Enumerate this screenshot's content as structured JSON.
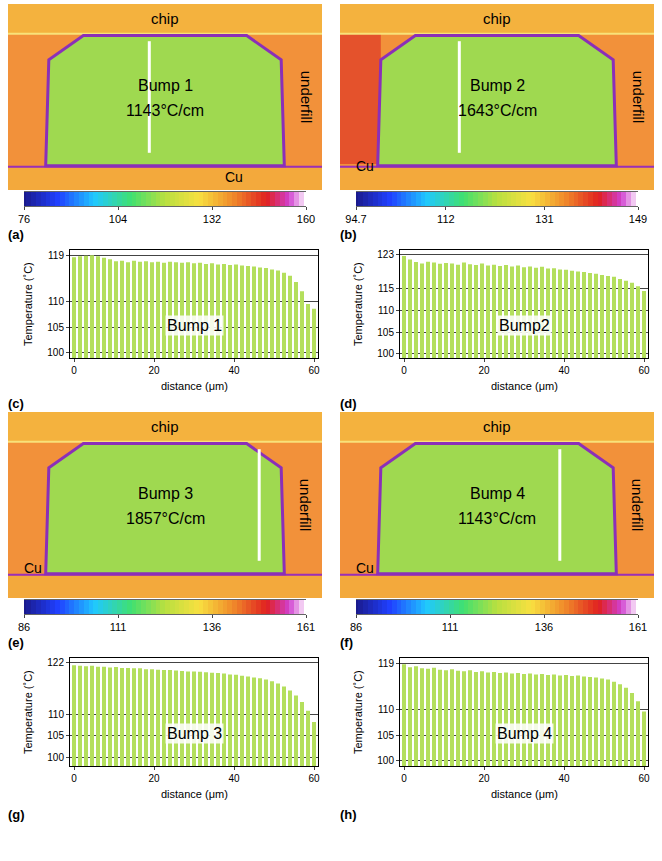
{
  "thermal_images": [
    {
      "panel": "(a)",
      "texts": {
        "chip": "chip",
        "bump": "Bump 1",
        "gradient": "1143°C/cm",
        "underfill": "underfill",
        "cu": "Cu"
      },
      "colorbar": {
        "range": [
          76,
          160
        ],
        "ticks": [
          76,
          104,
          132,
          160
        ]
      }
    },
    {
      "panel": "(b)",
      "texts": {
        "chip": "chip",
        "bump": "Bump 2",
        "gradient": "1643°C/cm",
        "underfill": "underfill",
        "cu": "Cu"
      },
      "colorbar": {
        "range": [
          94.7,
          149
        ],
        "ticks": [
          94.7,
          112,
          131,
          149
        ]
      }
    },
    {
      "panel": "(e)",
      "texts": {
        "chip": "chip",
        "bump": "Bump 3",
        "gradient": "1857°C/cm",
        "underfill": "underfill",
        "cu": "Cu"
      },
      "colorbar": {
        "range": [
          86,
          161
        ],
        "ticks": [
          86,
          111,
          136,
          161
        ]
      }
    },
    {
      "panel": "(f)",
      "texts": {
        "chip": "chip",
        "bump": "Bump 4",
        "gradient": "1143°C/cm",
        "underfill": "underfill",
        "cu": "Cu"
      },
      "colorbar": {
        "range": [
          86,
          161
        ],
        "ticks": [
          86,
          111,
          136,
          161
        ]
      }
    }
  ],
  "chart_data": [
    {
      "type": "bar",
      "panel": "(c)",
      "title": "Bump 1",
      "xlabel": "distance (μm)",
      "ylabel": "Temperature (˚C)",
      "color": "#b4df5c",
      "grid": true,
      "x": [
        0,
        1.5,
        3,
        4.5,
        6,
        7.5,
        9,
        10.5,
        12,
        13.5,
        15,
        16.5,
        18,
        19.5,
        21,
        22.5,
        24,
        25.5,
        27,
        28.5,
        30,
        31.5,
        33,
        34.5,
        36,
        37.5,
        39,
        40.5,
        42,
        43.5,
        45,
        46.5,
        48,
        49.5,
        51,
        52.5,
        54,
        55.5,
        57,
        58.5,
        60
      ],
      "values": [
        118.6,
        118.8,
        118.9,
        119,
        118.8,
        118.5,
        118.2,
        117.8,
        117.9,
        117.6,
        117.9,
        117.7,
        117.8,
        117.6,
        117.7,
        117.5,
        117.7,
        117.6,
        117.5,
        117.6,
        117.4,
        117.5,
        117.3,
        117.4,
        117.2,
        117.3,
        117.1,
        117.2,
        117,
        116.9,
        116.8,
        116.6,
        116.5,
        116.2,
        116,
        115.6,
        115,
        113.8,
        112,
        109.5,
        108.6
      ],
      "xlim": [
        -1,
        61
      ],
      "xticks": [
        0,
        20,
        40,
        60
      ],
      "ylim": [
        99,
        120
      ],
      "yticks": [
        100,
        105,
        110,
        119
      ]
    },
    {
      "type": "bar",
      "panel": "(d)",
      "title": "Bump2",
      "xlabel": "distance (μm)",
      "ylabel": "Temperature (˚C)",
      "color": "#b4df5c",
      "grid": true,
      "x": [
        0,
        1.5,
        3,
        4.5,
        6,
        7.5,
        9,
        10.5,
        12,
        13.5,
        15,
        16.5,
        18,
        19.5,
        21,
        22.5,
        24,
        25.5,
        27,
        28.5,
        30,
        31.5,
        33,
        34.5,
        36,
        37.5,
        39,
        40.5,
        42,
        43.5,
        45,
        46.5,
        48,
        49.5,
        51,
        52.5,
        54,
        55.5,
        57,
        58.5,
        60
      ],
      "values": [
        122.6,
        121.8,
        121.2,
        120.9,
        121.3,
        121.1,
        120.8,
        121,
        120.9,
        120.6,
        121.1,
        120.7,
        120.5,
        120.9,
        120.4,
        120.6,
        120.3,
        120.5,
        120.2,
        120.4,
        120,
        120.2,
        119.9,
        120.1,
        119.7,
        119.8,
        119.5,
        119.4,
        119.2,
        119,
        118.9,
        118.7,
        118.5,
        118.2,
        118,
        117.8,
        117.3,
        116.9,
        116.4,
        115.6,
        114.5
      ],
      "xlim": [
        -1,
        61
      ],
      "xticks": [
        0,
        20,
        40,
        60
      ],
      "ylim": [
        99,
        124
      ],
      "yticks": [
        100,
        105,
        110,
        115,
        123
      ]
    },
    {
      "type": "bar",
      "panel": "(g)",
      "title": "Bump 3",
      "xlabel": "distance (μm)",
      "ylabel": "Temperature (˚C)",
      "color": "#b4df5c",
      "grid": true,
      "x": [
        0,
        1.5,
        3,
        4.5,
        6,
        7.5,
        9,
        10.5,
        12,
        13.5,
        15,
        16.5,
        18,
        19.5,
        21,
        22.5,
        24,
        25.5,
        27,
        28.5,
        30,
        31.5,
        33,
        34.5,
        36,
        37.5,
        39,
        40.5,
        42,
        43.5,
        45,
        46.5,
        48,
        49.5,
        51,
        52.5,
        54,
        55.5,
        57,
        58.5,
        60
      ],
      "values": [
        121.3,
        121.2,
        121.1,
        121.2,
        121,
        121,
        120.8,
        120.9,
        120.7,
        120.7,
        120.6,
        120.6,
        120.4,
        120.4,
        120.3,
        120.2,
        120.2,
        120.1,
        120,
        119.9,
        119.9,
        119.8,
        119.7,
        119.6,
        119.5,
        119.4,
        119.2,
        119.1,
        118.9,
        118.7,
        118.5,
        118.3,
        118,
        117.6,
        117.1,
        116.4,
        115.5,
        114.3,
        112.8,
        110.8,
        108.2
      ],
      "xlim": [
        -1,
        61
      ],
      "xticks": [
        0,
        20,
        40,
        60
      ],
      "ylim": [
        98,
        123
      ],
      "yticks": [
        100,
        105,
        110,
        122
      ]
    },
    {
      "type": "bar",
      "panel": "(h)",
      "title": "Bump 4",
      "xlabel": "distance (μm)",
      "ylabel": "Temperature (˚C)",
      "color": "#b4df5c",
      "grid": true,
      "x": [
        0,
        1.5,
        3,
        4.5,
        6,
        7.5,
        9,
        10.5,
        12,
        13.5,
        15,
        16.5,
        18,
        19.5,
        21,
        22.5,
        24,
        25.5,
        27,
        28.5,
        30,
        31.5,
        33,
        34.5,
        36,
        37.5,
        39,
        40.5,
        42,
        43.5,
        45,
        46.5,
        48,
        49.5,
        51,
        52.5,
        54,
        55.5,
        57,
        58.5,
        60
      ],
      "values": [
        118.8,
        118.2,
        118.4,
        118,
        117.9,
        118.1,
        117.7,
        117.6,
        117.8,
        117.5,
        117.4,
        117.6,
        117.3,
        117.4,
        117.2,
        117.3,
        117.1,
        117.2,
        117,
        117.1,
        116.9,
        117,
        116.8,
        116.9,
        116.7,
        116.8,
        116.6,
        116.7,
        116.5,
        116.6,
        116.4,
        116.3,
        116.2,
        116,
        115.8,
        115.4,
        114.9,
        114.2,
        113.2,
        111.6,
        109.6
      ],
      "xlim": [
        -1,
        61
      ],
      "xticks": [
        0,
        20,
        40,
        60
      ],
      "ylim": [
        99,
        120
      ],
      "yticks": [
        100,
        105,
        110,
        119
      ]
    }
  ]
}
